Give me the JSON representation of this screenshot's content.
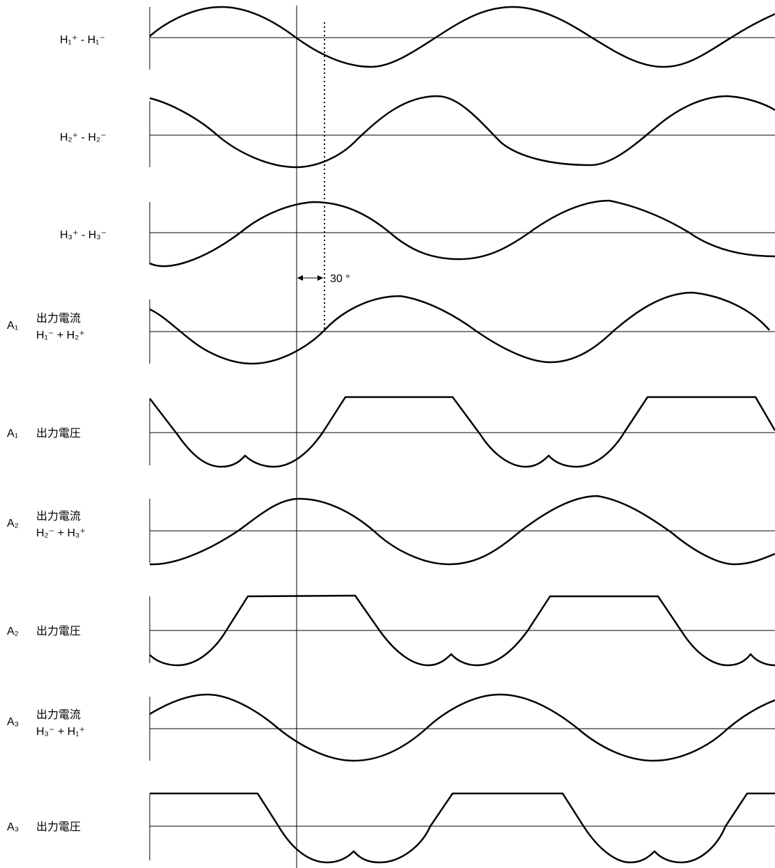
{
  "rows": [
    {
      "id": "h1",
      "label": "H₁⁺ - H₁⁻"
    },
    {
      "id": "h2",
      "label": "H₂⁺ - H₂⁻"
    },
    {
      "id": "h3",
      "label": "H₃⁺ - H₃⁻"
    },
    {
      "id": "a1-current",
      "prefix": "A₁",
      "label": "出力電流",
      "sublabel": "H₁⁻ + H₂⁺"
    },
    {
      "id": "a1-voltage",
      "prefix": "A₁",
      "label": "出力電圧"
    },
    {
      "id": "a2-current",
      "prefix": "A₂",
      "label": "出力電流",
      "sublabel": "H₂⁻ + H₃⁺"
    },
    {
      "id": "a2-voltage",
      "prefix": "A₂",
      "label": "出力電圧"
    },
    {
      "id": "a3-current",
      "prefix": "A₃",
      "label": "出力電流",
      "sublabel": "H₃⁻ + H₁⁺"
    },
    {
      "id": "a3-voltage",
      "prefix": "A₃",
      "label": "出力電圧"
    }
  ],
  "phase_annotation": "30 °"
}
